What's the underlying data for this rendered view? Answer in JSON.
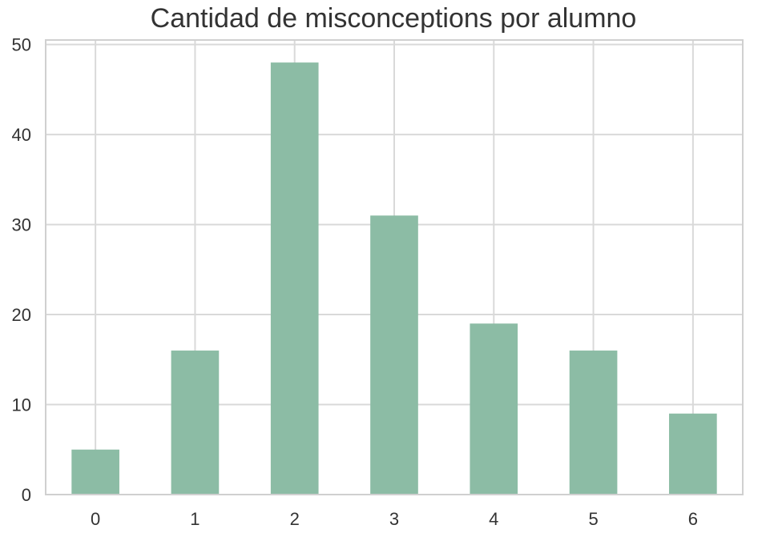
{
  "chart_data": {
    "type": "bar",
    "title": "Cantidad de misconceptions por alumno",
    "xlabel": "",
    "ylabel": "",
    "categories": [
      "0",
      "1",
      "2",
      "3",
      "4",
      "5",
      "6"
    ],
    "values": [
      5,
      16,
      48,
      31,
      19,
      16,
      9
    ],
    "ylim": [
      0,
      50.5
    ],
    "yticks": [
      0,
      10,
      20,
      30,
      40,
      50
    ],
    "grid": true,
    "legend": "none",
    "colors": {
      "bar": "#8cbca5",
      "grid": "#d9d9d9",
      "axes_border": "#d0d0d0",
      "text": "#333333",
      "background": "#ffffff"
    }
  }
}
